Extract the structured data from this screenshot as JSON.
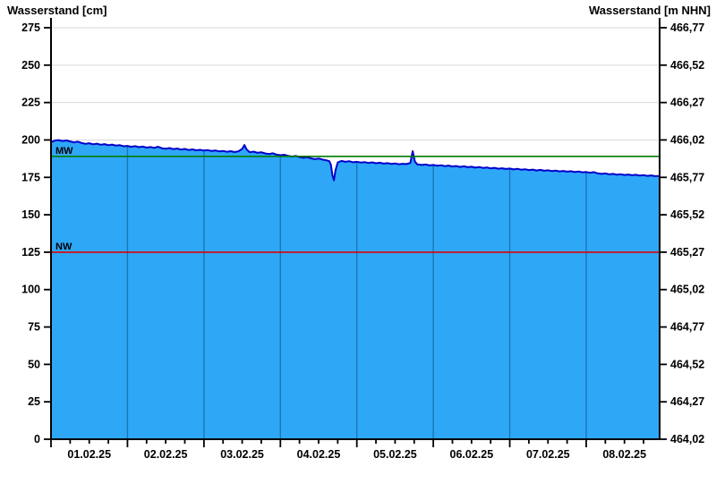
{
  "titles": {
    "left": "Wasserstand [cm]",
    "right": "Wasserstand [m NHN]"
  },
  "chart_data": {
    "type": "area",
    "title": "Wasserstand",
    "xlabel": "",
    "ylabel_left": "Wasserstand [cm]",
    "ylabel_right": "Wasserstand [m NHN]",
    "ylim_cm": [
      0,
      275
    ],
    "y_tick_step_cm": 25,
    "x_days_total": 7.96,
    "x_tick_labels": [
      "01.02.25",
      "02.02.25",
      "03.02.25",
      "04.02.25",
      "05.02.25",
      "06.02.25",
      "07.02.25",
      "08.02.25"
    ],
    "y_left_tick_labels": [
      "275",
      "250",
      "225",
      "200",
      "175",
      "150",
      "125",
      "100",
      "75",
      "50",
      "25",
      "0"
    ],
    "y_right_tick_labels": [
      "466,77",
      "466,52",
      "466,27",
      "466,02",
      "465,77",
      "465,52",
      "465,27",
      "465,02",
      "464,77",
      "464,52",
      "464,27",
      "464,02"
    ],
    "grid": {
      "horizontal": true,
      "vertical_per_day": true
    },
    "reference_lines": [
      {
        "name": "MW",
        "value_cm": 189,
        "color": "#007d00"
      },
      {
        "name": "NW",
        "value_cm": 125,
        "color": "#dd0000"
      }
    ],
    "colors": {
      "area_fill": "#2fa7f7",
      "series_line": "#0000cc",
      "grid_horizontal": "#d9d9d9",
      "grid_vertical_in_area": "#1a76b8",
      "axis": "#000000"
    },
    "series": [
      {
        "name": "Wasserstand [cm]",
        "points": [
          [
            0,
            198.5
          ],
          [
            0.05,
            199.6
          ],
          [
            0.1,
            199.9
          ],
          [
            0.15,
            199.3
          ],
          [
            0.2,
            199.7
          ],
          [
            0.25,
            199.0
          ],
          [
            0.3,
            198.4
          ],
          [
            0.35,
            198.9
          ],
          [
            0.4,
            198.0
          ],
          [
            0.45,
            197.4
          ],
          [
            0.5,
            197.8
          ],
          [
            0.55,
            197.1
          ],
          [
            0.6,
            197.5
          ],
          [
            0.65,
            196.8
          ],
          [
            0.7,
            197.2
          ],
          [
            0.75,
            196.5
          ],
          [
            0.8,
            196.9
          ],
          [
            0.85,
            196.2
          ],
          [
            0.9,
            196.5
          ],
          [
            0.95,
            195.8
          ],
          [
            1.0,
            196.0
          ],
          [
            1.05,
            195.4
          ],
          [
            1.1,
            195.9
          ],
          [
            1.15,
            195.2
          ],
          [
            1.2,
            195.6
          ],
          [
            1.25,
            194.9
          ],
          [
            1.3,
            195.3
          ],
          [
            1.35,
            194.7
          ],
          [
            1.4,
            195.5
          ],
          [
            1.45,
            194.5
          ],
          [
            1.5,
            194.1
          ],
          [
            1.55,
            194.6
          ],
          [
            1.6,
            193.9
          ],
          [
            1.65,
            194.3
          ],
          [
            1.7,
            193.6
          ],
          [
            1.75,
            194.0
          ],
          [
            1.8,
            193.3
          ],
          [
            1.85,
            193.7
          ],
          [
            1.9,
            193.1
          ],
          [
            1.95,
            193.4
          ],
          [
            2.0,
            192.9
          ],
          [
            2.05,
            193.2
          ],
          [
            2.1,
            192.6
          ],
          [
            2.15,
            193.0
          ],
          [
            2.2,
            192.4
          ],
          [
            2.25,
            192.7
          ],
          [
            2.3,
            192.1
          ],
          [
            2.35,
            192.5
          ],
          [
            2.4,
            191.9
          ],
          [
            2.45,
            192.4
          ],
          [
            2.5,
            194.0
          ],
          [
            2.53,
            196.6
          ],
          [
            2.56,
            193.5
          ],
          [
            2.6,
            191.8
          ],
          [
            2.65,
            192.2
          ],
          [
            2.7,
            191.4
          ],
          [
            2.75,
            191.8
          ],
          [
            2.8,
            191.0
          ],
          [
            2.85,
            190.6
          ],
          [
            2.9,
            191.1
          ],
          [
            2.95,
            190.2
          ],
          [
            3.0,
            189.8
          ],
          [
            3.05,
            190.1
          ],
          [
            3.1,
            189.4
          ],
          [
            3.15,
            188.9
          ],
          [
            3.2,
            189.3
          ],
          [
            3.25,
            188.6
          ],
          [
            3.3,
            188.1
          ],
          [
            3.35,
            188.5
          ],
          [
            3.4,
            187.7
          ],
          [
            3.45,
            187.2
          ],
          [
            3.5,
            187.6
          ],
          [
            3.55,
            186.9
          ],
          [
            3.6,
            186.4
          ],
          [
            3.64,
            185.8
          ],
          [
            3.66,
            183.5
          ],
          [
            3.68,
            176.5
          ],
          [
            3.7,
            173.0
          ],
          [
            3.72,
            179.5
          ],
          [
            3.75,
            185.0
          ],
          [
            3.8,
            186.0
          ],
          [
            3.85,
            185.4
          ],
          [
            3.9,
            185.8
          ],
          [
            3.95,
            185.1
          ],
          [
            4.0,
            185.4
          ],
          [
            4.05,
            184.9
          ],
          [
            4.1,
            185.2
          ],
          [
            4.15,
            184.6
          ],
          [
            4.2,
            185.0
          ],
          [
            4.25,
            184.4
          ],
          [
            4.3,
            184.8
          ],
          [
            4.35,
            184.2
          ],
          [
            4.4,
            184.5
          ],
          [
            4.45,
            184.0
          ],
          [
            4.5,
            184.3
          ],
          [
            4.55,
            183.8
          ],
          [
            4.6,
            184.1
          ],
          [
            4.65,
            183.9
          ],
          [
            4.7,
            184.6
          ],
          [
            4.73,
            192.5
          ],
          [
            4.76,
            185.5
          ],
          [
            4.79,
            183.7
          ],
          [
            4.85,
            183.3
          ],
          [
            4.9,
            183.6
          ],
          [
            4.95,
            183.0
          ],
          [
            5.0,
            183.3
          ],
          [
            5.05,
            182.8
          ],
          [
            5.1,
            183.1
          ],
          [
            5.15,
            182.5
          ],
          [
            5.2,
            182.9
          ],
          [
            5.25,
            182.3
          ],
          [
            5.3,
            182.6
          ],
          [
            5.35,
            182.0
          ],
          [
            5.4,
            182.4
          ],
          [
            5.45,
            181.8
          ],
          [
            5.5,
            182.1
          ],
          [
            5.55,
            181.5
          ],
          [
            5.6,
            181.9
          ],
          [
            5.65,
            181.3
          ],
          [
            5.7,
            181.6
          ],
          [
            5.75,
            181.0
          ],
          [
            5.8,
            181.4
          ],
          [
            5.85,
            180.8
          ],
          [
            5.9,
            181.1
          ],
          [
            5.95,
            180.6
          ],
          [
            6.0,
            180.9
          ],
          [
            6.05,
            180.3
          ],
          [
            6.1,
            180.7
          ],
          [
            6.15,
            180.1
          ],
          [
            6.2,
            180.4
          ],
          [
            6.25,
            179.9
          ],
          [
            6.3,
            180.2
          ],
          [
            6.35,
            179.6
          ],
          [
            6.4,
            180.0
          ],
          [
            6.45,
            179.4
          ],
          [
            6.5,
            179.7
          ],
          [
            6.55,
            179.2
          ],
          [
            6.6,
            179.5
          ],
          [
            6.65,
            179.0
          ],
          [
            6.7,
            179.3
          ],
          [
            6.75,
            178.8
          ],
          [
            6.8,
            179.1
          ],
          [
            6.85,
            178.6
          ],
          [
            6.9,
            178.9
          ],
          [
            6.95,
            178.4
          ],
          [
            7.0,
            178.6
          ],
          [
            7.05,
            178.1
          ],
          [
            7.1,
            178.5
          ],
          [
            7.15,
            177.7
          ],
          [
            7.2,
            177.3
          ],
          [
            7.25,
            177.6
          ],
          [
            7.3,
            177.0
          ],
          [
            7.35,
            177.3
          ],
          [
            7.4,
            176.8
          ],
          [
            7.45,
            177.1
          ],
          [
            7.5,
            176.6
          ],
          [
            7.55,
            176.9
          ],
          [
            7.6,
            176.4
          ],
          [
            7.65,
            176.7
          ],
          [
            7.7,
            176.2
          ],
          [
            7.75,
            176.5
          ],
          [
            7.8,
            176.0
          ],
          [
            7.85,
            176.3
          ],
          [
            7.9,
            175.8
          ],
          [
            7.96,
            175.9
          ]
        ]
      }
    ]
  }
}
